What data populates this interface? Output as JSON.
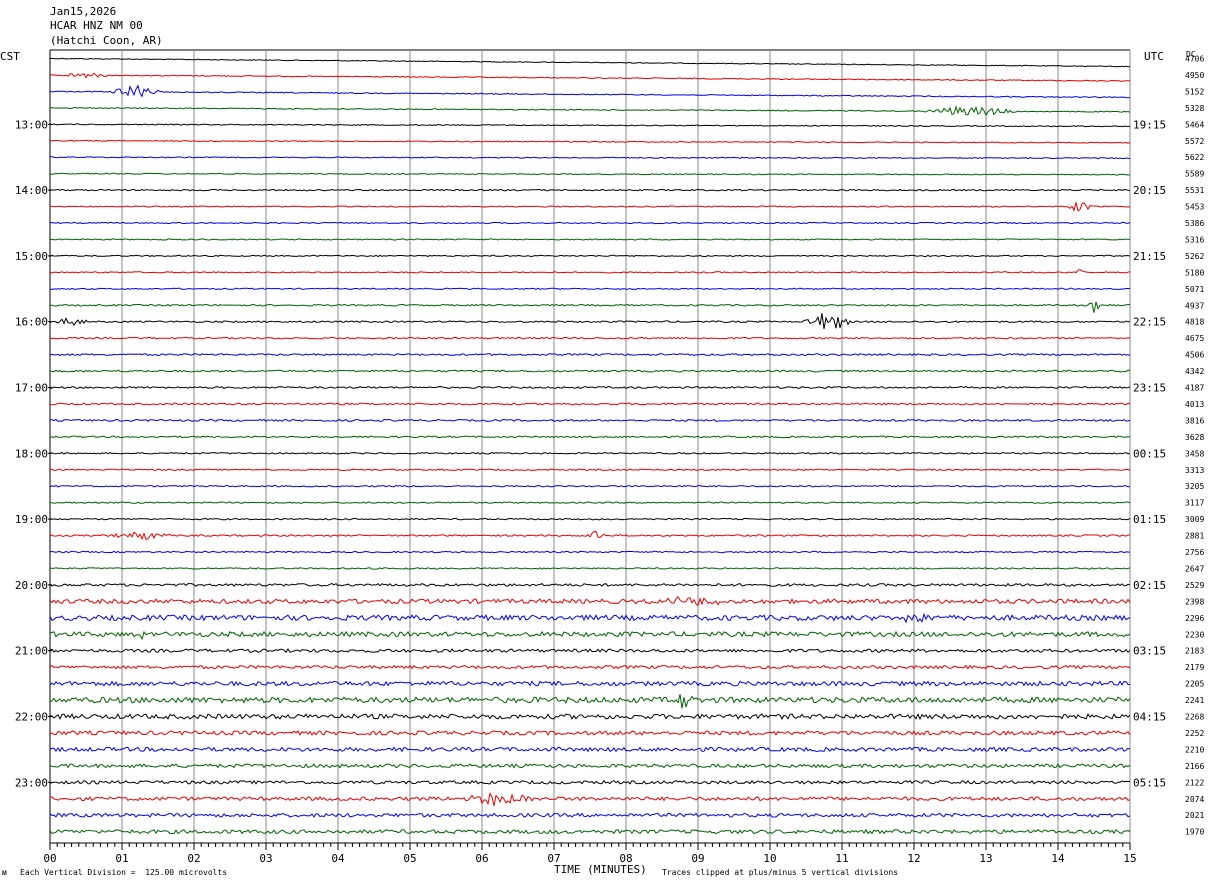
{
  "header": {
    "date": "Jan15,2026",
    "channel": "HCAR HNZ NM 00",
    "location": "(Hatchi Coon, AR)"
  },
  "left_tz": "CST",
  "right_tz": "UTC",
  "dc_label": "DC",
  "footer": {
    "scale_note": "Each Vertical Division =  125.00 microvolts",
    "clip_note": "Traces clipped at plus/minus 5 vertical divisions"
  },
  "colors": [
    "#000000",
    "#e00000",
    "#0000e0",
    "#006000"
  ],
  "chart_data": {
    "type": "line",
    "title": "",
    "xlabel": "TIME (MINUTES)",
    "ylabel": "",
    "xlim": [
      0,
      15
    ],
    "x_ticks": [
      "00",
      "01",
      "02",
      "03",
      "04",
      "05",
      "06",
      "07",
      "08",
      "09",
      "10",
      "11",
      "12",
      "13",
      "14",
      "15"
    ],
    "grid": true,
    "left_hour_labels": [
      "13:00",
      "14:00",
      "15:00",
      "16:00",
      "17:00",
      "18:00",
      "19:00",
      "20:00",
      "21:00",
      "22:00",
      "23:00"
    ],
    "right_hour_labels": [
      "19:15",
      "20:15",
      "21:15",
      "22:15",
      "23:15",
      "00:15",
      "01:15",
      "02:15",
      "03:15",
      "04:15",
      "05:15"
    ],
    "dc_offsets": [
      4706,
      4950,
      5152,
      5328,
      5464,
      5572,
      5622,
      5589,
      5531,
      5453,
      5386,
      5316,
      5262,
      5180,
      5071,
      4937,
      4818,
      4675,
      4506,
      4342,
      4187,
      4013,
      3816,
      3628,
      3458,
      3313,
      3205,
      3117,
      3009,
      2881,
      2756,
      2647,
      2529,
      2398,
      2296,
      2230,
      2183,
      2179,
      2205,
      2241,
      2268,
      2252,
      2210,
      2166,
      2122,
      2074,
      2021,
      1970
    ],
    "series": [
      {
        "noise": 0.4,
        "drift": 8
      },
      {
        "noise": 0.5,
        "drift": 6,
        "events": [
          {
            "minute": 0.5,
            "amp": 3,
            "width": 0.4
          }
        ]
      },
      {
        "noise": 0.5,
        "drift": 6,
        "events": [
          {
            "minute": 1.2,
            "amp": 7,
            "width": 0.4
          }
        ]
      },
      {
        "noise": 0.5,
        "drift": 4,
        "events": [
          {
            "minute": 12.8,
            "amp": 6,
            "width": 0.7
          }
        ]
      },
      {
        "noise": 0.5,
        "drift": 2
      },
      {
        "noise": 0.5,
        "drift": 2
      },
      {
        "noise": 0.5,
        "drift": 1
      },
      {
        "noise": 0.5,
        "drift": 1
      },
      {
        "noise": 0.7,
        "drift": 0
      },
      {
        "noise": 0.6,
        "drift": 0,
        "events": [
          {
            "minute": 14.3,
            "amp": 7,
            "width": 0.2
          }
        ]
      },
      {
        "noise": 0.6,
        "drift": 0
      },
      {
        "noise": 0.6,
        "drift": 0
      },
      {
        "noise": 0.6,
        "drift": 0
      },
      {
        "noise": 0.6,
        "drift": 0,
        "events": [
          {
            "minute": 14.3,
            "amp": 6,
            "width": 0.08
          }
        ]
      },
      {
        "noise": 0.6,
        "drift": 0
      },
      {
        "noise": 0.8,
        "drift": 0,
        "events": [
          {
            "minute": 14.5,
            "amp": 7,
            "width": 0.1
          }
        ]
      },
      {
        "noise": 0.8,
        "drift": 0,
        "events": [
          {
            "minute": 10.8,
            "amp": 12,
            "width": 0.35
          },
          {
            "minute": 0.3,
            "amp": 4,
            "width": 0.3
          }
        ]
      },
      {
        "noise": 0.8,
        "drift": 0
      },
      {
        "noise": 0.9,
        "drift": 0
      },
      {
        "noise": 0.9,
        "drift": 0
      },
      {
        "noise": 0.9,
        "drift": 0
      },
      {
        "noise": 0.9,
        "drift": 0
      },
      {
        "noise": 0.9,
        "drift": 0
      },
      {
        "noise": 0.8,
        "drift": 0
      },
      {
        "noise": 0.7,
        "drift": 0
      },
      {
        "noise": 0.7,
        "drift": 0
      },
      {
        "noise": 0.7,
        "drift": 0
      },
      {
        "noise": 0.7,
        "drift": 0
      },
      {
        "noise": 0.7,
        "drift": 0
      },
      {
        "noise": 0.8,
        "drift": 0,
        "events": [
          {
            "minute": 1.3,
            "amp": 5,
            "width": 0.5
          },
          {
            "minute": 7.6,
            "amp": 7,
            "width": 0.15
          }
        ]
      },
      {
        "noise": 0.7,
        "drift": 0
      },
      {
        "noise": 0.7,
        "drift": 0
      },
      {
        "noise": 1.3,
        "drift": 0
      },
      {
        "noise": 2.2,
        "drift": 0,
        "events": [
          {
            "minute": 9.0,
            "amp": 4,
            "width": 1.0
          }
        ]
      },
      {
        "noise": 2.6,
        "drift": 0,
        "events": [
          {
            "minute": 12.0,
            "amp": 4,
            "width": 0.3
          }
        ]
      },
      {
        "noise": 2.4,
        "drift": 0,
        "events": [
          {
            "minute": 1.2,
            "amp": 4,
            "width": 0.3
          }
        ]
      },
      {
        "noise": 1.6,
        "drift": 0
      },
      {
        "noise": 1.6,
        "drift": 0
      },
      {
        "noise": 2.2,
        "drift": 0
      },
      {
        "noise": 2.8,
        "drift": 0,
        "events": [
          {
            "minute": 8.8,
            "amp": 9,
            "width": 0.15
          }
        ]
      },
      {
        "noise": 2.4,
        "drift": 0
      },
      {
        "noise": 2.0,
        "drift": 0
      },
      {
        "noise": 2.0,
        "drift": 0
      },
      {
        "noise": 1.8,
        "drift": 0
      },
      {
        "noise": 1.6,
        "drift": 0
      },
      {
        "noise": 1.8,
        "drift": 0,
        "events": [
          {
            "minute": 6.2,
            "amp": 7,
            "width": 0.6
          }
        ]
      },
      {
        "noise": 1.8,
        "drift": 0
      },
      {
        "noise": 1.9,
        "drift": 0
      }
    ]
  }
}
